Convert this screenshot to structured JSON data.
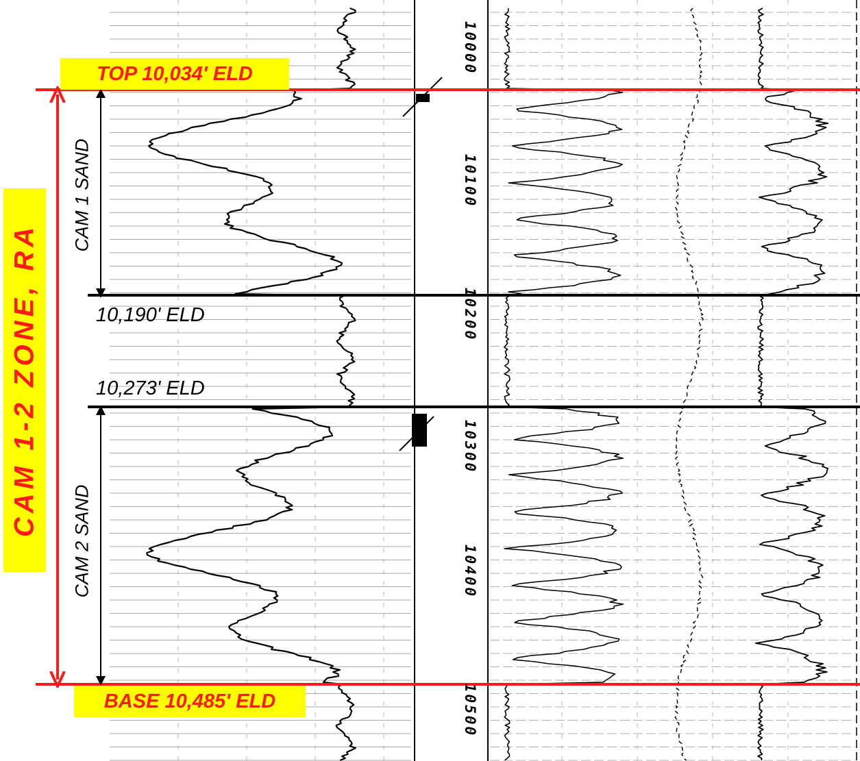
{
  "labels": {
    "top": "TOP 10,034' ELD",
    "base": "BASE 10,485' ELD",
    "zone": "CAM 1-2 ZONE, RA",
    "cam1": "CAM 1 SAND",
    "cam2": "CAM 2 SAND",
    "eld_10190": "10,190' ELD",
    "eld_10273": "10,273' ELD"
  },
  "depth_marks": [
    "10000",
    "10100",
    "10200",
    "10300",
    "10400",
    "10500"
  ],
  "colors": {
    "marker_red": "#ff1a1a",
    "label_fill": "#ffff00",
    "curve": "#000000"
  }
}
